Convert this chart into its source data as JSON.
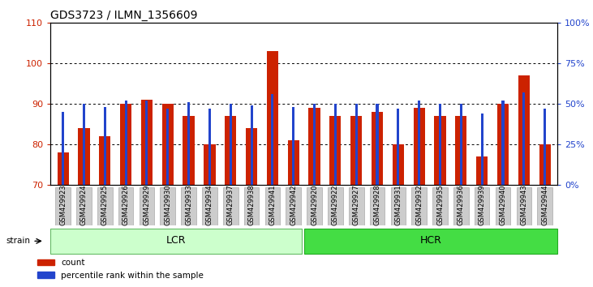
{
  "title": "GDS3723 / ILMN_1356609",
  "samples": [
    "GSM429923",
    "GSM429924",
    "GSM429925",
    "GSM429926",
    "GSM429929",
    "GSM429930",
    "GSM429933",
    "GSM429934",
    "GSM429937",
    "GSM429938",
    "GSM429941",
    "GSM429942",
    "GSM429920",
    "GSM429922",
    "GSM429927",
    "GSM429928",
    "GSM429931",
    "GSM429932",
    "GSM429935",
    "GSM429936",
    "GSM429939",
    "GSM429940",
    "GSM429943",
    "GSM429944"
  ],
  "counts": [
    78,
    84,
    82,
    90,
    91,
    90,
    87,
    80,
    87,
    84,
    103,
    81,
    89,
    87,
    87,
    88,
    80,
    89,
    87,
    87,
    77,
    90,
    97,
    80
  ],
  "percentile_ranks": [
    45,
    50,
    48,
    52,
    52,
    47,
    51,
    47,
    50,
    49,
    56,
    48,
    50,
    50,
    50,
    50,
    47,
    52,
    50,
    50,
    44,
    52,
    57,
    47
  ],
  "ylim_left": [
    70,
    110
  ],
  "ylim_right": [
    0,
    100
  ],
  "yticks_left": [
    70,
    80,
    90,
    100,
    110
  ],
  "yticks_right": [
    0,
    25,
    50,
    75,
    100
  ],
  "bar_color": "#cc2200",
  "percentile_color": "#2244cc",
  "lcr_color": "#ccffcc",
  "hcr_color": "#44dd44",
  "tick_bg_color": "#cccccc",
  "bar_width": 0.55,
  "blue_bar_width": 0.12,
  "n_lcr": 12,
  "n_hcr": 12
}
